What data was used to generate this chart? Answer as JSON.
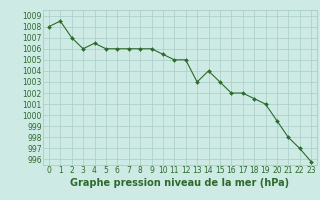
{
  "x": [
    0,
    1,
    2,
    3,
    4,
    5,
    6,
    7,
    8,
    9,
    10,
    11,
    12,
    13,
    14,
    15,
    16,
    17,
    18,
    19,
    20,
    21,
    22,
    23
  ],
  "y": [
    1008.0,
    1008.5,
    1007.0,
    1006.0,
    1006.5,
    1006.0,
    1006.0,
    1006.0,
    1006.0,
    1006.0,
    1005.5,
    1005.0,
    1005.0,
    1003.0,
    1004.0,
    1003.0,
    1002.0,
    1002.0,
    1001.5,
    1001.0,
    999.5,
    998.0,
    997.0,
    995.8
  ],
  "line_color": "#2d6a2d",
  "marker": "D",
  "marker_size": 2.0,
  "background_color": "#ceeae4",
  "grid_color": "#a8cdc8",
  "tick_label_color": "#2d6a2d",
  "xlabel": "Graphe pression niveau de la mer (hPa)",
  "xlabel_fontsize": 7,
  "tick_fontsize": 5.5,
  "ylim": [
    995.5,
    1009.5
  ],
  "xlim": [
    -0.5,
    23.5
  ],
  "yticks": [
    996,
    997,
    998,
    999,
    1000,
    1001,
    1002,
    1003,
    1004,
    1005,
    1006,
    1007,
    1008,
    1009
  ],
  "xticks": [
    0,
    1,
    2,
    3,
    4,
    5,
    6,
    7,
    8,
    9,
    10,
    11,
    12,
    13,
    14,
    15,
    16,
    17,
    18,
    19,
    20,
    21,
    22,
    23
  ]
}
